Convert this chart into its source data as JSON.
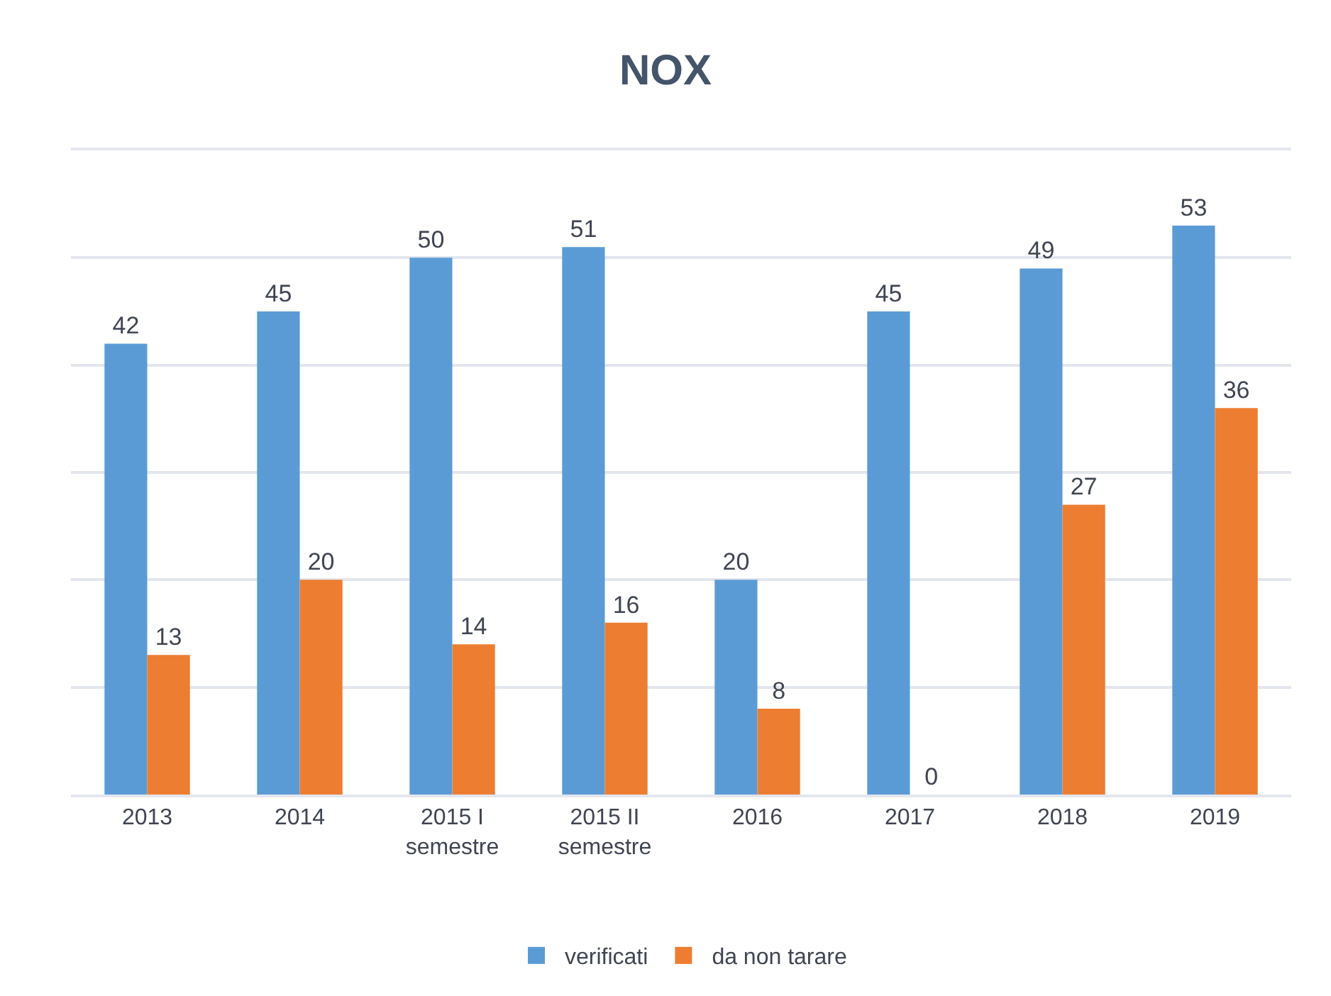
{
  "chart_data": {
    "type": "bar",
    "title": "NOX",
    "categories": [
      "2013",
      "2014",
      "2015 I semestre",
      "2015 II semestre",
      "2016",
      "2017",
      "2018",
      "2019"
    ],
    "series": [
      {
        "name": "verificati",
        "color": "#5b9bd5",
        "values": [
          42,
          45,
          50,
          51,
          20,
          45,
          49,
          53
        ]
      },
      {
        "name": "da non tarare",
        "color": "#ed7d31",
        "values": [
          13,
          20,
          14,
          16,
          8,
          0,
          27,
          36
        ]
      }
    ],
    "ylim": [
      0,
      60
    ],
    "yticks": [
      {
        "value": 0,
        "label": null
      },
      {
        "value": 10,
        "label": null
      },
      {
        "value": 20,
        "label": null
      },
      {
        "value": 30,
        "label": null
      },
      {
        "value": 40,
        "label": null
      },
      {
        "value": 50,
        "label": null
      },
      {
        "value": 60,
        "label": null
      }
    ],
    "tick_labels": "x",
    "grid": "y",
    "legend": "bottom",
    "data_labels": true
  }
}
